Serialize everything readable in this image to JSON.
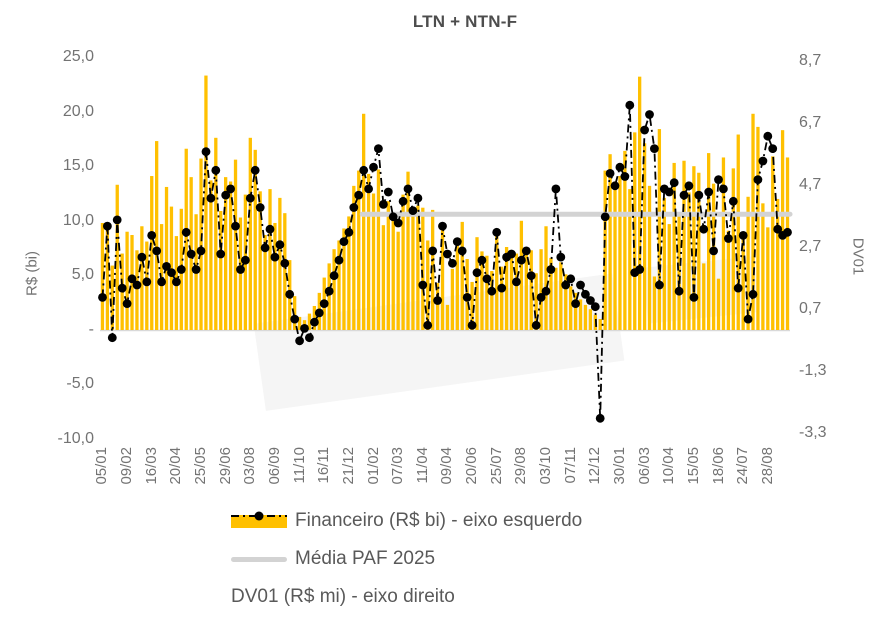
{
  "title": "LTN + NTN-F",
  "left_axis": {
    "title": "R$ (bi)",
    "ticks": [
      "25,0",
      "20,0",
      "15,0",
      "10,0",
      "5,0",
      "-",
      "-5,0",
      "-10,0"
    ]
  },
  "right_axis": {
    "title": "DV01",
    "ticks": [
      "8,7",
      "6,7",
      "4,7",
      "2,7",
      "0,7",
      "-1,3",
      "-3,3"
    ]
  },
  "x_axis": {
    "ticks": [
      "05/01",
      "09/02",
      "16/03",
      "20/04",
      "25/05",
      "29/06",
      "03/08",
      "06/09",
      "11/10",
      "16/11",
      "21/12",
      "01/02",
      "07/03",
      "11/04",
      "09/04",
      "20/06",
      "25/07",
      "29/08",
      "03/10",
      "07/11",
      "12/12",
      "30/01",
      "06/03",
      "10/04",
      "15/05",
      "18/06",
      "24/07",
      "28/08"
    ]
  },
  "legend": {
    "financeiro": "Financeiro (R$ bi) - eixo esquerdo",
    "media": "Média PAF 2025",
    "dv01": "DV01 (R$ mi) - eixo direito"
  },
  "colors": {
    "bar": "#FFC000",
    "media_line": "#d3d3d3",
    "dv01_line": "#000000",
    "axis_text": "#737373",
    "title_text": "#4d4d4d",
    "legend_text": "#595959"
  },
  "chart_data": {
    "type": "bar",
    "subtype": "combo-bar-plus-lines",
    "title": "LTN + NTN-F",
    "xlabel": "",
    "ylabel_left": "R$ (bi)",
    "ylabel_right": "DV01",
    "left_ylim": [
      -10.0,
      25.0
    ],
    "right_ylim": [
      -3.3,
      8.7
    ],
    "grid": false,
    "legend_position": "bottom-left",
    "x_tick_labels": [
      "05/01",
      "09/02",
      "16/03",
      "20/04",
      "25/05",
      "29/06",
      "03/08",
      "06/09",
      "11/10",
      "16/11",
      "21/12",
      "01/02",
      "07/03",
      "11/04",
      "09/04",
      "20/06",
      "25/07",
      "29/08",
      "03/10",
      "07/11",
      "12/12",
      "30/01",
      "06/03",
      "10/04",
      "15/05",
      "18/06",
      "24/07",
      "28/08"
    ],
    "bars_per_tick": 5,
    "series": [
      {
        "name": "Financeiro (R$ bi) - eixo esquerdo",
        "type": "bar",
        "axis": "left",
        "color": "#FFC000",
        "values": [
          9.8,
          9.4,
          5.9,
          13.3,
          7.0,
          9.0,
          8.7,
          7.3,
          9.5,
          8.1,
          14.1,
          17.3,
          9.7,
          13.1,
          11.3,
          8.6,
          11.1,
          16.6,
          14.0,
          10.6,
          15.7,
          23.3,
          13.7,
          17.6,
          10.9,
          14.0,
          13.6,
          15.6,
          10.3,
          12.4,
          17.6,
          16.5,
          12.7,
          8.7,
          12.9,
          9.8,
          12.1,
          10.7,
          6.4,
          3.1,
          1.2,
          0.9,
          1.5,
          2.2,
          3.4,
          4.8,
          6.1,
          7.4,
          8.2,
          9.3,
          10.4,
          13.2,
          14.6,
          19.8,
          14.3,
          12.5,
          14.7,
          9.6,
          11.8,
          10.2,
          9.0,
          12.4,
          14.5,
          10.8,
          11.4,
          11.2,
          8.2,
          11.0,
          4.3,
          9.8,
          2.3,
          5.6,
          7.8,
          9.9,
          6.5,
          4.4,
          8.5,
          7.2,
          6.8,
          5.4,
          9.2,
          5.8,
          7.6,
          6.6,
          7.0,
          10.0,
          6.9,
          7.3,
          5.2,
          7.4,
          9.5,
          6.6,
          5.7,
          6.2,
          5.1,
          4.0,
          3.4,
          2.8,
          2.3,
          1.9,
          1.4,
          1.0,
          14.6,
          16.1,
          13.6,
          14.1,
          16.4,
          12.9,
          18.1,
          23.2,
          17.1,
          13.2,
          4.9,
          18.4,
          12.1,
          9.7,
          15.3,
          10.4,
          15.5,
          12.6,
          15.0,
          14.4,
          6.1,
          16.2,
          13.4,
          4.7,
          15.8,
          9.1,
          14.8,
          17.9,
          8.4,
          12.2,
          19.8,
          18.6,
          11.6,
          9.4,
          15.9,
          12.0,
          18.3,
          15.8
        ]
      },
      {
        "name": "Média PAF 2025",
        "type": "line",
        "axis": "left",
        "color": "#d3d3d3",
        "value": 10.6,
        "span_fraction": [
          0.38,
          1.0
        ]
      },
      {
        "name": "DV01 (R$ mi) - eixo direito",
        "type": "line-markers",
        "axis": "right",
        "dash": "dash-dot",
        "color": "#000000",
        "values": [
          1.1,
          3.4,
          -0.2,
          3.6,
          1.4,
          0.9,
          1.7,
          1.5,
          2.4,
          1.6,
          3.1,
          2.6,
          1.6,
          2.1,
          1.9,
          1.6,
          2.0,
          3.2,
          2.5,
          2.0,
          2.6,
          5.8,
          4.3,
          5.2,
          2.5,
          4.4,
          4.6,
          3.4,
          2.0,
          2.3,
          4.3,
          5.2,
          4.0,
          2.7,
          3.3,
          2.4,
          2.8,
          2.2,
          1.2,
          0.4,
          -0.3,
          0.1,
          -0.2,
          0.3,
          0.6,
          0.9,
          1.3,
          1.8,
          2.3,
          2.9,
          3.2,
          4.0,
          4.4,
          5.2,
          4.6,
          5.3,
          5.9,
          4.1,
          4.5,
          3.7,
          3.5,
          4.2,
          4.6,
          3.9,
          4.3,
          1.5,
          0.2,
          2.6,
          1.0,
          3.4,
          2.5,
          2.2,
          2.9,
          2.6,
          1.1,
          0.2,
          1.9,
          2.3,
          1.7,
          1.3,
          3.2,
          1.4,
          2.4,
          2.5,
          1.6,
          2.3,
          2.6,
          1.8,
          0.2,
          1.1,
          1.3,
          2.0,
          4.6,
          2.4,
          1.5,
          1.7,
          0.9,
          1.5,
          1.2,
          1.0,
          0.8,
          -2.8,
          3.7,
          5.1,
          4.7,
          5.3,
          5.0,
          7.3,
          1.9,
          2.0,
          6.5,
          7.0,
          5.9,
          1.5,
          4.6,
          4.5,
          4.8,
          1.3,
          4.4,
          4.7,
          1.1,
          4.4,
          3.3,
          4.5,
          2.6,
          4.9,
          4.6,
          3.0,
          4.2,
          1.4,
          3.1,
          0.4,
          1.2,
          4.9,
          5.5,
          6.3,
          5.9,
          3.3,
          3.1,
          3.2
        ]
      }
    ]
  }
}
